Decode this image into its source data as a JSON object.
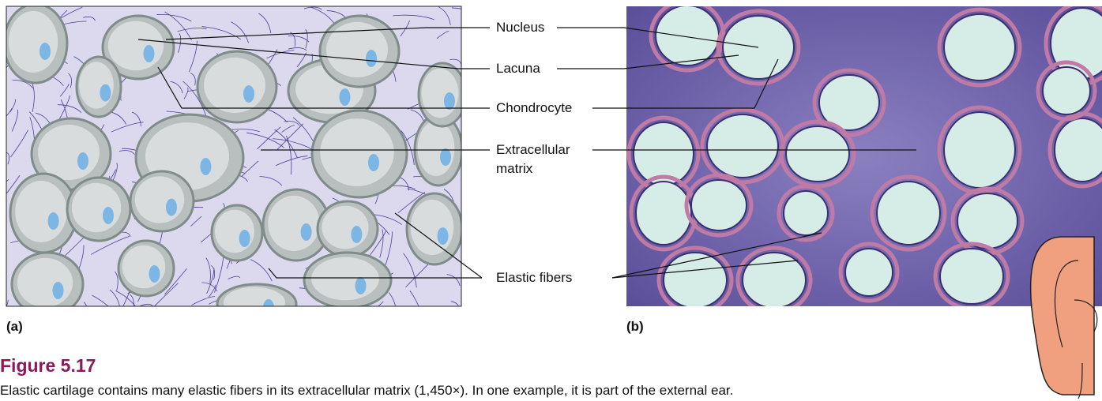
{
  "labels": [
    "Nucleus",
    "Lacuna",
    "Chondrocyte",
    "Extracellular matrix",
    "Elastic fibers"
  ],
  "panels": [
    "(a)",
    "(b)"
  ],
  "figure": {
    "title": "Figure 5.17",
    "caption": "Elastic cartilage contains many elastic fibers in its extracellular matrix (1,450×). In one example, it is part of the external ear."
  }
}
